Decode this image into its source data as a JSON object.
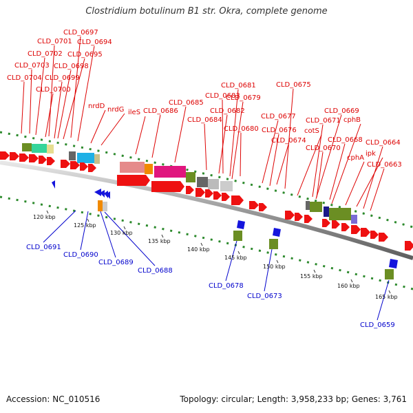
{
  "title": "Clostridium botulinum B1 str. Okra, complete genome",
  "footer": {
    "accession": "Accession: NC_010516",
    "topology": "Topology: circular; Length: 3,958,233 bp; Genes: 3,761"
  },
  "colors": {
    "forward_label": "#dd0000",
    "reverse_label": "#0000cc"
  },
  "top_labels": [
    "CLD_0697",
    "CLD_0701",
    "CLD_0694",
    "CLD_0702",
    "CLD_0695",
    "CLD_0703",
    "CLD_0698",
    "CLD_0704",
    "CLD_0699",
    "CLD_0700",
    "nrdD",
    "nrdG",
    "ileS",
    "CLD_0686",
    "CLD_0685",
    "CLD_0681",
    "CLD_0683",
    "CLD_0684",
    "CLD_0682",
    "CLD_0679",
    "CLD_0680",
    "CLD_0675",
    "CLD_0677",
    "CLD_0676",
    "CLD_0674",
    "CLD_0669",
    "CLD_0671",
    "cotS",
    "cphB",
    "CLD_0668",
    "CLD_0670",
    "CLD_0664",
    "ipk",
    "cphA",
    "CLD_0663"
  ],
  "bottom_labels": [
    "CLD_0691",
    "CLD_0690",
    "CLD_0689",
    "CLD_0688",
    "CLD_0678",
    "CLD_0673",
    "CLD_0659"
  ],
  "kbp_labels": [
    "120 kbp",
    "125 kbp",
    "130 kbp",
    "135 kbp",
    "140 kbp",
    "145 kbp",
    "150 kbp",
    "155 kbp",
    "160 kbp",
    "165 kbp"
  ]
}
